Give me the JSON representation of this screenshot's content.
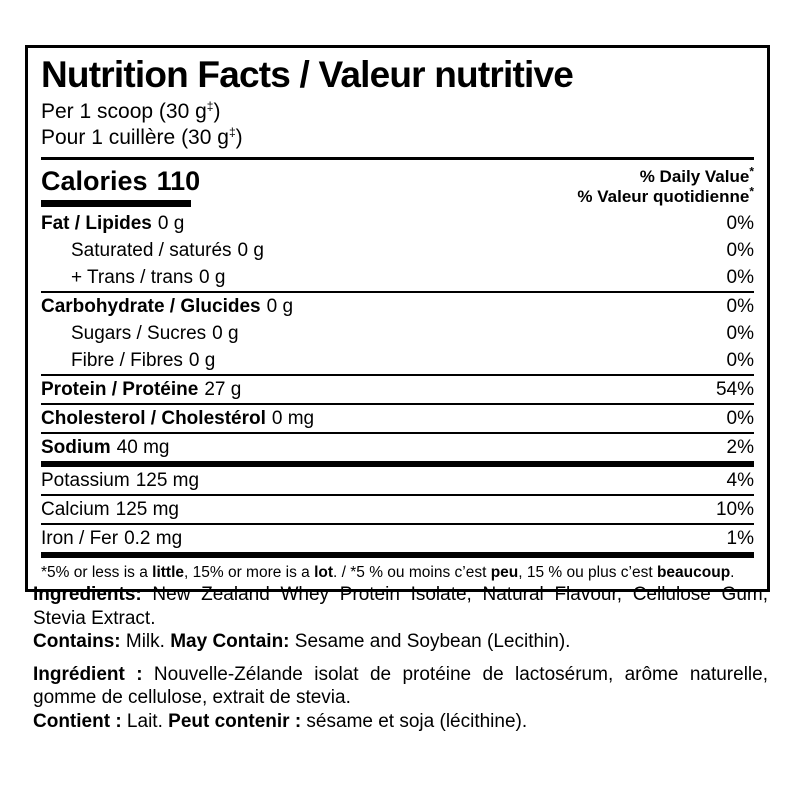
{
  "colors": {
    "text": "#000000",
    "background": "#ffffff",
    "rule": "#000000"
  },
  "panel": {
    "title": "Nutrition Facts / Valeur nutritive",
    "serving_en": {
      "pre": "Per 1 scoop (30 g",
      "sup": "‡",
      "post": ")"
    },
    "serving_fr": {
      "pre": "Pour 1 cuillère (30 g",
      "sup": "‡",
      "post": ")"
    },
    "calories": {
      "label": "Calories",
      "value": "110"
    },
    "daily_value_en": {
      "text": "% Daily Value",
      "sup": "*"
    },
    "daily_value_fr": {
      "text": "% Valeur quotidienne",
      "sup": "*"
    },
    "rows": [
      {
        "name": "Fat / Lipides",
        "amount": "0 g",
        "dv": "0%"
      },
      {
        "name": "Saturated / saturés",
        "amount": "0 g",
        "dv": "0%"
      },
      {
        "name": "+ Trans / trans",
        "amount": "0 g",
        "dv": "0%"
      },
      {
        "name": "Carbohydrate / Glucides",
        "amount": "0 g",
        "dv": "0%"
      },
      {
        "name": "Sugars / Sucres",
        "amount": "0 g",
        "dv": "0%"
      },
      {
        "name": "Fibre / Fibres",
        "amount": "0 g",
        "dv": "0%"
      },
      {
        "name": "Protein / Protéine",
        "amount": "27 g",
        "dv": "54%"
      },
      {
        "name": "Cholesterol / Cholestérol",
        "amount": "0 mg",
        "dv": "0%"
      },
      {
        "name": "Sodium",
        "amount": "40 mg",
        "dv": "2%"
      },
      {
        "name": "Potassium",
        "amount": "125 mg",
        "dv": "4%"
      },
      {
        "name": "Calcium",
        "amount": "125 mg",
        "dv": "10%"
      },
      {
        "name": "Iron / Fer",
        "amount": "0.2 mg",
        "dv": "1%"
      }
    ],
    "footnote": {
      "s1": "*5% or less is a ",
      "b1": "little",
      "s2": ", 15% or more is a ",
      "b2": "lot",
      "s3": ". / *5 % ou moins c’est ",
      "b3": "peu",
      "s4": ", 15 % ou plus c’est ",
      "b4": "beaucoup",
      "s5": "."
    }
  },
  "ingredients": {
    "en": {
      "label": "Ingredients:",
      "text": " New Zealand Whey Protein Isolate, Natural Flavour, Cellulose Gum, Stevia Extract."
    },
    "contains_en": {
      "label1": "Contains:",
      "text1": " Milk. ",
      "label2": "May Contain:",
      "text2": " Sesame and Soybean (Lecithin)."
    },
    "fr": {
      "label": "Ingrédient :",
      "text": " Nouvelle-Zélande isolat de protéine de lactosérum, arôme naturelle, gomme de cellulose, extrait de stevia."
    },
    "contains_fr": {
      "label1": "Contient :",
      "text1": " Lait. ",
      "label2": "Peut contenir :",
      "text2": " sésame et soja (lécithine)."
    }
  }
}
